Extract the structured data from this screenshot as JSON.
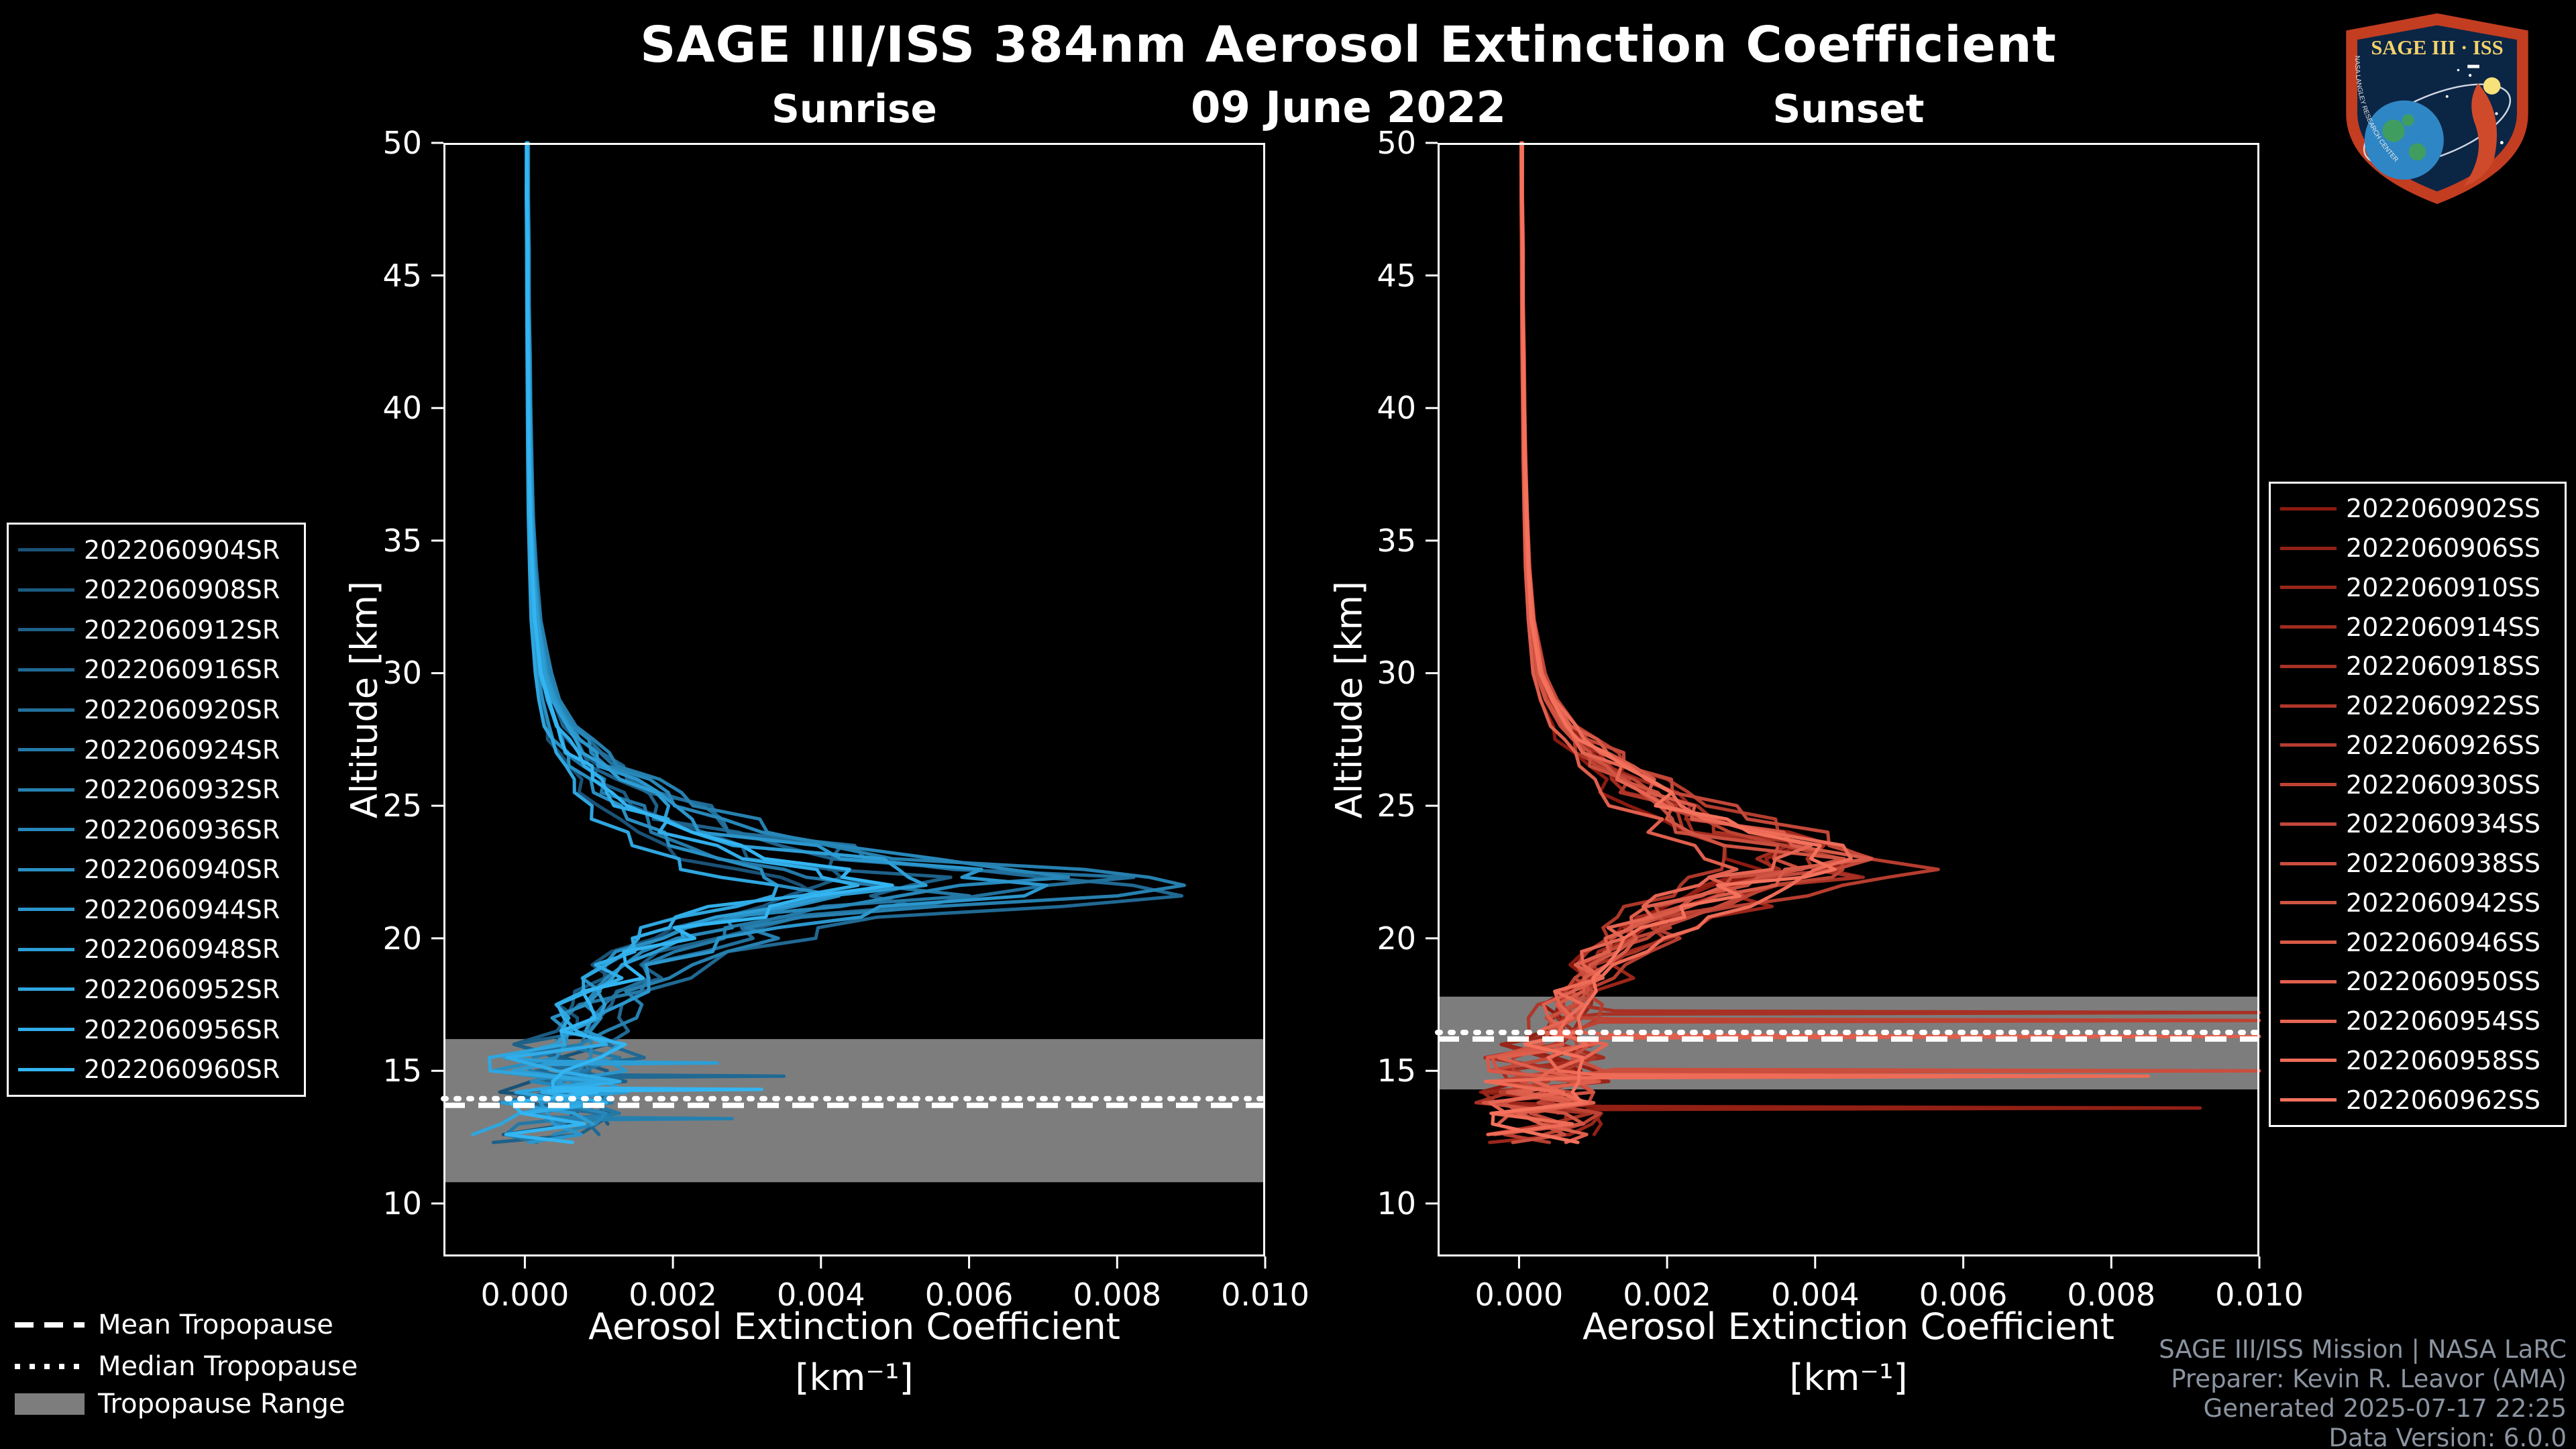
{
  "title": "SAGE III/ISS 384nm Aerosol Extinction Coefficient",
  "date": "09 June 2022",
  "colors": {
    "background": "#000000",
    "text": "#ffffff",
    "tropopause_band": "#7d7d7d",
    "credits_text": "#8b94a0",
    "sunrise_dark": "#1a5276",
    "sunrise_light": "#33b5f2",
    "sunset_dark": "#8b1a10",
    "sunset_light": "#f4715c"
  },
  "panels": {
    "sunrise": {
      "subtitle": "Sunrise"
    },
    "sunset": {
      "subtitle": "Sunset"
    }
  },
  "axes": {
    "y_label": "Altitude [km]",
    "x_label_line1": "Aerosol Extinction Coefficient",
    "x_label_line2": "[km⁻¹]",
    "x_tick_labels": [
      "0.000",
      "0.002",
      "0.004",
      "0.006",
      "0.008",
      "0.010"
    ],
    "y_tick_labels": [
      "50",
      "45",
      "40",
      "35",
      "30",
      "25",
      "20",
      "15",
      "10"
    ]
  },
  "tropopause_legend": {
    "mean": "Mean Tropopause",
    "median": "Median Tropopause",
    "range": "Tropopause Range"
  },
  "credits": {
    "line1": "SAGE III/ISS Mission | NASA LaRC",
    "line2": "Preparer: Kevin R. Leavor (AMA)",
    "line3": "Generated 2025-07-17 22:25",
    "line4": "Data Version: 6.0.0"
  },
  "logo": {
    "text": "SAGE III · ISS",
    "subtext": "NASA LANGLEY RESEARCH CENTER"
  },
  "chart_data": [
    {
      "type": "line",
      "panel": "sunrise",
      "title": "Sunrise",
      "xlabel": "Aerosol Extinction Coefficient [km⁻¹]",
      "ylabel": "Altitude [km]",
      "xlim": [
        -0.0011,
        0.01
      ],
      "ylim": [
        8,
        50
      ],
      "x_ticks": [
        0.0,
        0.002,
        0.004,
        0.006,
        0.008,
        0.01
      ],
      "y_ticks": [
        10,
        15,
        20,
        25,
        30,
        35,
        40,
        45,
        50
      ],
      "grid": false,
      "legend_position": "outside-left",
      "tropopause": {
        "mean_km": 13.7,
        "median_km": 13.95,
        "range_km": [
          10.8,
          16.2
        ]
      },
      "profile_alt_km": [
        50,
        48,
        46,
        44,
        42,
        40,
        38,
        36,
        34,
        32,
        30,
        29,
        28,
        27.5,
        27,
        26.5,
        26,
        25.5,
        25,
        24.5,
        24,
        23.5,
        23,
        22.6,
        22.3,
        22,
        21.6,
        21.2,
        20.8,
        20.4,
        20,
        19.5,
        19,
        18.5,
        18,
        17.5,
        17,
        16.5,
        16,
        15.5,
        15,
        14.6,
        14.2,
        13.8,
        13.4,
        13,
        12.6,
        12.3
      ],
      "base_extinction": [
        4e-05,
        4e-05,
        5e-05,
        5e-05,
        6e-05,
        7e-05,
        8e-05,
        0.0001,
        0.00013,
        0.00018,
        0.0003,
        0.00042,
        0.0006,
        0.00075,
        0.0009,
        0.0011,
        0.0014,
        0.0017,
        0.002,
        0.0024,
        0.0029,
        0.0036,
        0.0046,
        0.0056,
        0.0065,
        0.007,
        0.006,
        0.0048,
        0.0038,
        0.0031,
        0.0026,
        0.0021,
        0.0018,
        0.0015,
        0.0013,
        0.0011,
        0.00095,
        0.00082,
        0.0007,
        0.00058,
        0.00048,
        0.0006,
        0.0008,
        0.0006,
        0.0004,
        0.00025,
        0.0004,
        0.0003
      ],
      "peak_extinction_km1": 0.0084,
      "peak_altitude_km": 22.3,
      "series": [
        {
          "name": "2022060904SR",
          "color": "#1a5276",
          "scale": 0.55,
          "shift_km": 0.3,
          "end_km": 12.6,
          "spikes": []
        },
        {
          "name": "2022060908SR",
          "color": "#1c5a80",
          "scale": 0.7,
          "shift_km": -0.2,
          "end_km": 13.0,
          "spikes": []
        },
        {
          "name": "2022060912SR",
          "color": "#1e6189",
          "scale": 0.9,
          "shift_km": 0.1,
          "end_km": 12.3,
          "spikes": []
        },
        {
          "name": "2022060916SR",
          "color": "#206993",
          "scale": 1.2,
          "shift_km": 0.25,
          "end_km": 12.6,
          "spikes": [
            [
              14.8,
              0.0035
            ]
          ]
        },
        {
          "name": "2022060920SR",
          "color": "#22709c",
          "scale": 1.05,
          "shift_km": -0.1,
          "end_km": 13.4,
          "spikes": []
        },
        {
          "name": "2022060924SR",
          "color": "#2478a6",
          "scale": 0.8,
          "shift_km": 0.4,
          "end_km": 12.3,
          "spikes": []
        },
        {
          "name": "2022060932SR",
          "color": "#2680af",
          "scale": 1.15,
          "shift_km": 0.0,
          "end_km": 13.0,
          "spikes": [
            [
              13.2,
              0.0028
            ]
          ]
        },
        {
          "name": "2022060936SR",
          "color": "#2787b9",
          "scale": 0.95,
          "shift_km": -0.3,
          "end_km": 12.6,
          "spikes": []
        },
        {
          "name": "2022060940SR",
          "color": "#298fc2",
          "scale": 0.6,
          "shift_km": 0.2,
          "end_km": 13.8,
          "spikes": []
        },
        {
          "name": "2022060944SR",
          "color": "#2b96cc",
          "scale": 1.0,
          "shift_km": 0.1,
          "end_km": 12.3,
          "spikes": []
        },
        {
          "name": "2022060948SR",
          "color": "#2d9ed5",
          "scale": 0.85,
          "shift_km": -0.15,
          "end_km": 13.0,
          "spikes": [
            [
              15.3,
              0.0026
            ]
          ]
        },
        {
          "name": "2022060952SR",
          "color": "#2fa6df",
          "scale": 0.5,
          "shift_km": 0.35,
          "end_km": 12.6,
          "spikes": []
        },
        {
          "name": "2022060956SR",
          "color": "#31ade8",
          "scale": 0.65,
          "shift_km": -0.25,
          "end_km": 13.4,
          "spikes": []
        },
        {
          "name": "2022060960SR",
          "color": "#33b5f2",
          "scale": 0.75,
          "shift_km": 0.05,
          "end_km": 12.3,
          "spikes": [
            [
              14.3,
              0.0032
            ]
          ]
        }
      ]
    },
    {
      "type": "line",
      "panel": "sunset",
      "title": "Sunset",
      "xlabel": "Aerosol Extinction Coefficient [km⁻¹]",
      "ylabel": "Altitude [km]",
      "xlim": [
        -0.0011,
        0.01
      ],
      "ylim": [
        8,
        50
      ],
      "x_ticks": [
        0.0,
        0.002,
        0.004,
        0.006,
        0.008,
        0.01
      ],
      "y_ticks": [
        10,
        15,
        20,
        25,
        30,
        35,
        40,
        45,
        50
      ],
      "grid": false,
      "legend_position": "outside-right",
      "tropopause": {
        "mean_km": 16.2,
        "median_km": 16.45,
        "range_km": [
          14.3,
          17.8
        ]
      },
      "profile_alt_km": [
        50,
        48,
        46,
        44,
        42,
        40,
        38,
        36,
        34,
        32,
        30,
        29,
        28,
        27.5,
        27,
        26.5,
        26,
        25.5,
        25,
        24.5,
        24,
        23.5,
        23,
        22.6,
        22.3,
        22,
        21.6,
        21.2,
        20.8,
        20.4,
        20,
        19.5,
        19,
        18.5,
        18,
        17.5,
        17,
        16.5,
        16,
        15.5,
        15,
        14.6,
        14.2,
        13.8,
        13.4,
        13,
        12.6,
        12.3
      ],
      "base_extinction": [
        4e-05,
        4e-05,
        5e-05,
        5e-05,
        6e-05,
        7e-05,
        8e-05,
        0.0001,
        0.00013,
        0.00018,
        0.0003,
        0.00045,
        0.0007,
        0.0009,
        0.0011,
        0.0013,
        0.0016,
        0.0019,
        0.0023,
        0.0027,
        0.0032,
        0.0039,
        0.0045,
        0.0041,
        0.0037,
        0.0033,
        0.0028,
        0.0024,
        0.0021,
        0.0018,
        0.0016,
        0.0013,
        0.0011,
        0.00095,
        0.0008,
        0.0007,
        0.0006,
        0.00052,
        0.00045,
        0.0004,
        0.00035,
        0.0003,
        0.00028,
        0.0003,
        0.00026,
        0.00022,
        0.0003,
        0.00025
      ],
      "peak_extinction_km1": 0.0052,
      "peak_altitude_km": 23.3,
      "series": [
        {
          "name": "2022060902SS",
          "color": "#8b1a10",
          "scale": 0.7,
          "shift_km": 0.2,
          "end_km": 13.4,
          "spikes": []
        },
        {
          "name": "2022060906SS",
          "color": "#922015",
          "scale": 0.9,
          "shift_km": -0.1,
          "end_km": 12.6,
          "spikes": [
            [
              13.6,
              0.0092
            ]
          ]
        },
        {
          "name": "2022060910SS",
          "color": "#99261a",
          "scale": 1.1,
          "shift_km": 0.3,
          "end_km": 12.3,
          "spikes": []
        },
        {
          "name": "2022060914SS",
          "color": "#a02b1f",
          "scale": 0.85,
          "shift_km": 0.0,
          "end_km": 13.0,
          "spikes": []
        },
        {
          "name": "2022060918SS",
          "color": "#a73124",
          "scale": 1.0,
          "shift_km": 0.15,
          "end_km": 12.6,
          "spikes": [
            [
              17.2,
              0.0108
            ]
          ]
        },
        {
          "name": "2022060922SS",
          "color": "#ae3729",
          "scale": 0.75,
          "shift_km": -0.2,
          "end_km": 13.4,
          "spikes": []
        },
        {
          "name": "2022060926SS",
          "color": "#b53d2e",
          "scale": 1.15,
          "shift_km": 0.1,
          "end_km": 12.3,
          "spikes": []
        },
        {
          "name": "2022060930SS",
          "color": "#bc4333",
          "scale": 0.95,
          "shift_km": 0.25,
          "end_km": 12.6,
          "spikes": [
            [
              16.9,
              0.0108
            ]
          ]
        },
        {
          "name": "2022060934SS",
          "color": "#c34839",
          "scale": 1.05,
          "shift_km": -0.15,
          "end_km": 13.0,
          "spikes": []
        },
        {
          "name": "2022060938SS",
          "color": "#ca4e3e",
          "scale": 0.8,
          "shift_km": 0.05,
          "end_km": 12.3,
          "spikes": [
            [
              15.0,
              0.0108
            ]
          ]
        },
        {
          "name": "2022060942SS",
          "color": "#d15443",
          "scale": 0.9,
          "shift_km": 0.2,
          "end_km": 12.6,
          "spikes": []
        },
        {
          "name": "2022060946SS",
          "color": "#d85a48",
          "scale": 1.0,
          "shift_km": -0.05,
          "end_km": 13.0,
          "spikes": []
        },
        {
          "name": "2022060950SS",
          "color": "#df5f4d",
          "scale": 0.7,
          "shift_km": 0.3,
          "end_km": 12.3,
          "spikes": [
            [
              16.3,
              0.0108
            ]
          ]
        },
        {
          "name": "2022060954SS",
          "color": "#e66552",
          "scale": 0.85,
          "shift_km": -0.25,
          "end_km": 13.4,
          "spikes": []
        },
        {
          "name": "2022060958SS",
          "color": "#ed6b57",
          "scale": 1.1,
          "shift_km": 0.1,
          "end_km": 12.6,
          "spikes": [
            [
              14.8,
              0.0085
            ]
          ]
        },
        {
          "name": "2022060962SS",
          "color": "#f4715c",
          "scale": 0.95,
          "shift_km": 0.0,
          "end_km": 12.3,
          "spikes": []
        }
      ]
    }
  ]
}
